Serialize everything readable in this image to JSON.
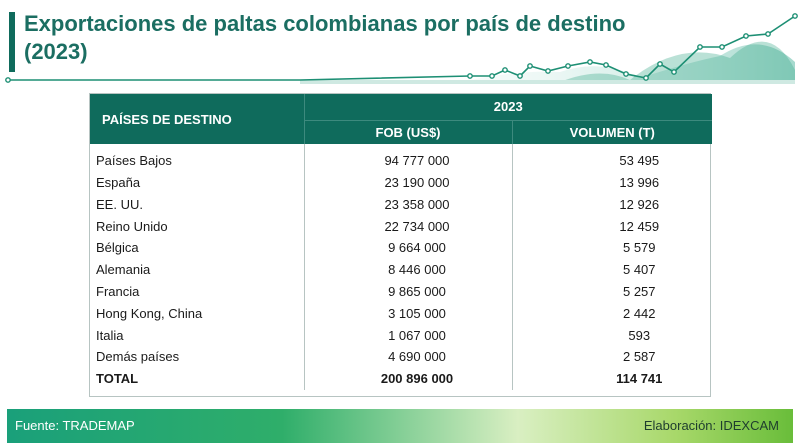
{
  "title": "Exportaciones de paltas colombianas por país de destino (2023)",
  "table": {
    "header_country": "PAÍSES DE DESTINO",
    "header_year": "2023",
    "header_fob": "FOB (US$)",
    "header_volume": "VOLUMEN (T)",
    "rows": [
      {
        "country": "Países Bajos",
        "fob": "94 777 000",
        "volume": "53 495"
      },
      {
        "country": "España",
        "fob": "23 190 000",
        "volume": "13 996"
      },
      {
        "country": "EE. UU.",
        "fob": "23 358 000",
        "volume": "12 926"
      },
      {
        "country": "Reino Unido",
        "fob": "22 734 000",
        "volume": "12 459"
      },
      {
        "country": "Bélgica",
        "fob": "9 664 000",
        "volume": "5 579"
      },
      {
        "country": "Alemania",
        "fob": "8 446 000",
        "volume": "5 407"
      },
      {
        "country": "Francia",
        "fob": "9 865 000",
        "volume": "5 257"
      },
      {
        "country": "Hong Kong, China",
        "fob": "3 105 000",
        "volume": "2 442"
      },
      {
        "country": "Italia",
        "fob": "1 067 000",
        "volume": "593"
      },
      {
        "country": "Demás países",
        "fob": "4 690 000",
        "volume": "2 587"
      }
    ],
    "total": {
      "country": "TOTAL",
      "fob": "200 896 000",
      "volume": "114 741"
    }
  },
  "footer": {
    "source": "Fuente: TRADEMAP",
    "credit": "Elaboración: IDEXCAM"
  },
  "colors": {
    "header_green": "#0f6b5c",
    "title_green": "#1b6e62",
    "accent_teal": "#1aa07a",
    "accent_lime": "#69bd3a"
  }
}
